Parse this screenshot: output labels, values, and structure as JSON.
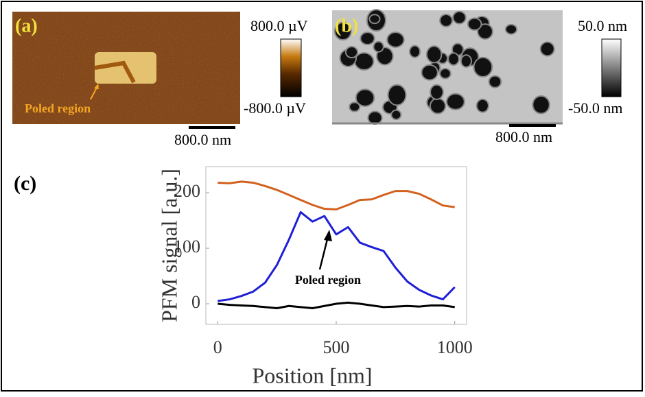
{
  "panels": {
    "a": {
      "label": "(a)",
      "annotation": "Poled region",
      "colorbar_max": "800.0 µV",
      "colorbar_min": "-800.0 µV",
      "scale_bar": "800.0 nm"
    },
    "b": {
      "label": "(b)",
      "colorbar_max": "50.0 nm",
      "colorbar_min": "-50.0 nm",
      "scale_bar": "800.0 nm"
    }
  },
  "chart_data": {
    "type": "line",
    "panel_label": "(c)",
    "x_label": "Position [nm]",
    "y_label": "PFM signal [a.u.]",
    "annotation": "Poled region",
    "x": [
      0,
      50,
      100,
      150,
      200,
      250,
      300,
      350,
      400,
      450,
      500,
      550,
      600,
      650,
      700,
      750,
      800,
      850,
      900,
      950,
      1000
    ],
    "series": [
      {
        "color": "#d2611f",
        "values": [
          218,
          217,
          220,
          218,
          212,
          205,
          196,
          187,
          178,
          171,
          170,
          178,
          187,
          188,
          196,
          203,
          203,
          198,
          188,
          177,
          174
        ]
      },
      {
        "color": "#1f1fd6",
        "values": [
          5,
          8,
          14,
          22,
          38,
          70,
          115,
          165,
          148,
          158,
          125,
          138,
          110,
          102,
          95,
          65,
          40,
          25,
          15,
          8,
          30
        ]
      },
      {
        "color": "#000000",
        "values": [
          0,
          -2,
          -3,
          -4,
          -6,
          -8,
          -4,
          -6,
          -8,
          -4,
          0,
          2,
          0,
          -3,
          -6,
          -5,
          -4,
          -5,
          -3,
          -3,
          -6
        ]
      }
    ],
    "xlim": [
      -50,
      1050
    ],
    "ylim": [
      -37,
      247
    ],
    "xticks": [
      0,
      500,
      1000
    ],
    "yticks": [
      0,
      100,
      200
    ],
    "grid": false
  }
}
